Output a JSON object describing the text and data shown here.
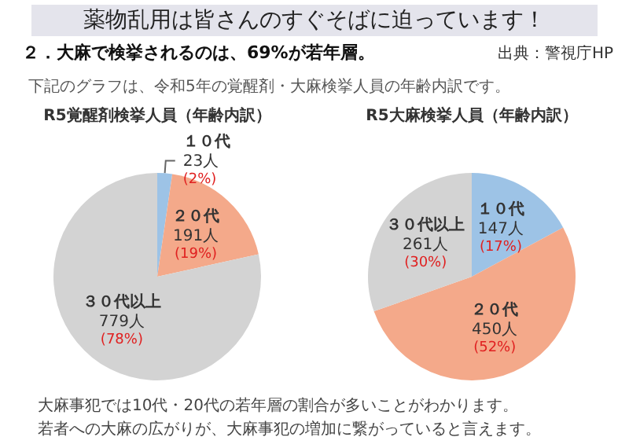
{
  "chart_data": [
    {
      "type": "other",
      "title": "薬物乱用は皆さんのすぐそばに迫っています！",
      "subtitle": "２．大麻で検挙されるのは、69%が若年層。",
      "annotations": [
        "下記のグラフは、令和5年の覚醒剤・大麻検挙人員の年齢内訳です。",
        "出典：警視庁HP"
      ]
    },
    {
      "type": "pie",
      "title": "R5覚醒剤検挙人員（年齢内訳）",
      "categories": [
        "１０代",
        "２０代",
        "３０代以上"
      ],
      "values": [
        23,
        191,
        779
      ],
      "colors": [
        "#9dc3e6",
        "#f4a98a",
        "#d3d3d3"
      ],
      "value_labels": [
        "23人\n(2%)",
        "191人\n(19%)",
        "779人\n(78%)"
      ]
    },
    {
      "type": "pie",
      "title": "R5大麻検挙人員（年齢内訳）",
      "categories": [
        "１０代",
        "２０代",
        "３０代以上"
      ],
      "values": [
        147,
        450,
        261
      ],
      "colors": [
        "#9dc3e6",
        "#f4a98a",
        "#d3d3d3"
      ],
      "value_labels": [
        "147人\n(17%)",
        "450人\n(52%)",
        "261人\n(30%)"
      ]
    },
    {
      "type": "other",
      "annotations": [
        "大麻事犯では10代・20代の若年層の割合が多いことがわかります。",
        "若者への大麻の広がりが、大麻事犯の増加に繋がっていると言えます。"
      ]
    }
  ]
}
